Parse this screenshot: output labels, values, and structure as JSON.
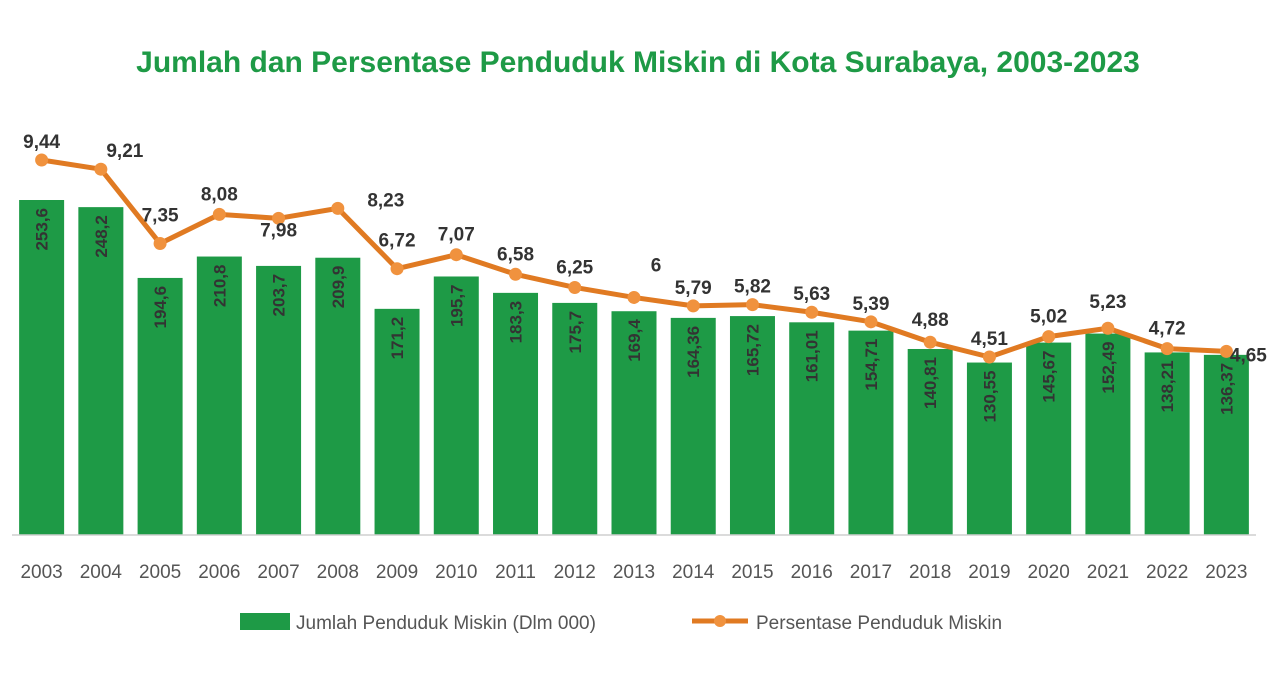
{
  "chart_data": {
    "type": "bar",
    "title": "Jumlah dan Persentase Penduduk Miskin di Kota Surabaya, 2003-2023",
    "categories": [
      "2003",
      "2004",
      "2005",
      "2006",
      "2007",
      "2008",
      "2009",
      "2010",
      "2011",
      "2012",
      "2013",
      "2014",
      "2015",
      "2016",
      "2017",
      "2018",
      "2019",
      "2020",
      "2021",
      "2022",
      "2023"
    ],
    "series": [
      {
        "name": "Jumlah Penduduk Miskin (Dlm 000)",
        "type": "bar",
        "values": [
          253.6,
          248.2,
          194.6,
          210.8,
          203.7,
          209.9,
          171.2,
          195.7,
          183.3,
          175.7,
          169.4,
          164.36,
          165.72,
          161.01,
          154.71,
          140.81,
          130.55,
          145.67,
          152.49,
          138.21,
          136.37
        ],
        "labels": [
          "253,6",
          "248,2",
          "194,6",
          "210,8",
          "203,7",
          "209,9",
          "171,2",
          "195,7",
          "183,3",
          "175,7",
          "169,4",
          "164,36",
          "165,72",
          "161,01",
          "154,71",
          "140,81",
          "130,55",
          "145,67",
          "152,49",
          "138,21",
          "136,37"
        ],
        "color": "#1e9a46"
      },
      {
        "name": "Persentase Penduduk Miskin",
        "type": "line",
        "values": [
          9.44,
          9.21,
          7.35,
          8.08,
          7.98,
          8.23,
          6.72,
          7.07,
          6.58,
          6.25,
          6,
          5.79,
          5.82,
          5.63,
          5.39,
          4.88,
          4.51,
          5.02,
          5.23,
          4.72,
          4.65
        ],
        "labels": [
          "9,44",
          "9,21",
          "7,35",
          "8,08",
          "7,98",
          "8,23",
          "6,72",
          "7,07",
          "6,58",
          "6,25",
          "6",
          "5,79",
          "5,82",
          "5,63",
          "5,39",
          "4,88",
          "4,51",
          "5,02",
          "5,23",
          "4,72",
          "4,65"
        ],
        "color": "#e07a22"
      }
    ],
    "legend_position": "bottom",
    "grid": false
  }
}
